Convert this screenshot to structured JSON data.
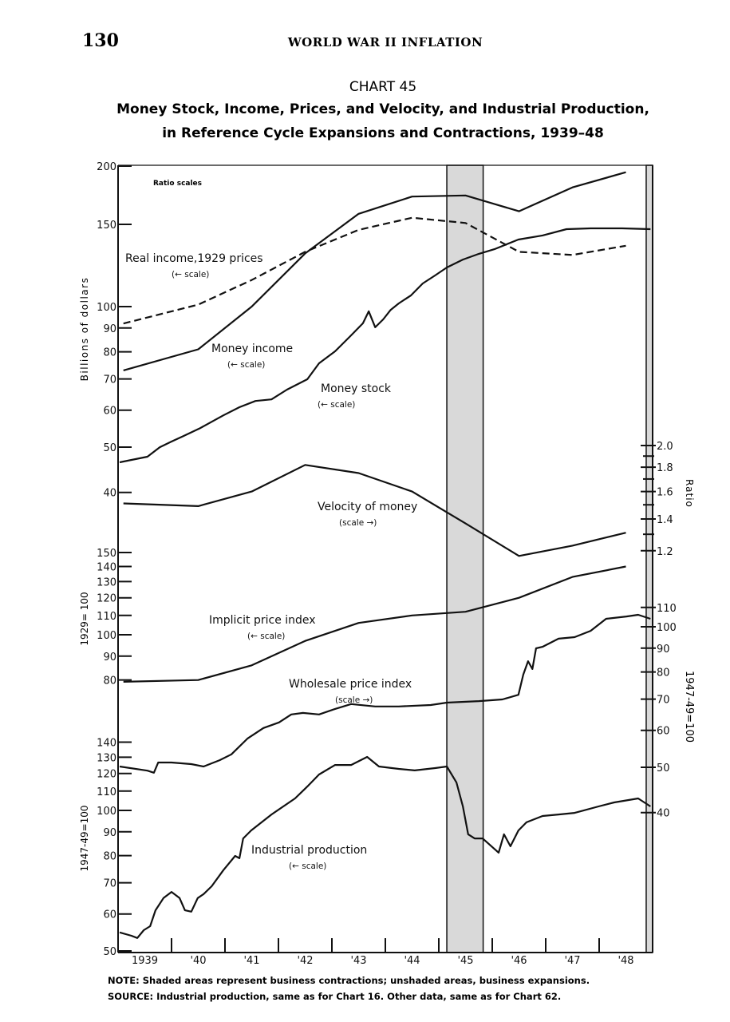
{
  "page": {
    "number": "130",
    "running_head": "WORLD WAR II INFLATION"
  },
  "colors": {
    "ink": "#111111",
    "shade": "#d9d9d9",
    "paper": "#ffffff"
  },
  "chart_data": {
    "type": "line",
    "chart_label": "CHART 45",
    "title_line1": "Money Stock, Income, Prices, and Velocity, and Industrial Production,",
    "title_line2": "in Reference Cycle Expansions and Contractions, 1939–48",
    "scale_note": "Ratio scales",
    "x_tick_labels": [
      "1939",
      "'40",
      "'41",
      "'42",
      "'43",
      "'44",
      "'45",
      "'46",
      "'47",
      "'48"
    ],
    "xlim": [
      1939,
      1949
    ],
    "contractions": [
      [
        1945.15,
        1945.83
      ],
      [
        1948.88,
        1949.0
      ]
    ],
    "axes": {
      "dollars": {
        "title": "Billions of dollars",
        "ticks": [
          200,
          150,
          100,
          90,
          80,
          70,
          60,
          50,
          40
        ],
        "side": "left"
      },
      "ratio": {
        "title": "Ratio",
        "ticks": [
          2.0,
          1.8,
          1.6,
          1.4,
          1.2
        ],
        "minor": [
          1.9,
          1.7,
          1.5,
          1.3
        ],
        "side": "right"
      },
      "index1929": {
        "title": "1929= 100",
        "ticks": [
          150,
          140,
          130,
          120,
          110,
          100,
          90,
          80
        ],
        "side": "left"
      },
      "wholesale": {
        "title": "1947-49=100",
        "ticks": [
          110,
          100,
          90,
          80,
          70,
          60,
          50,
          40
        ],
        "side": "right"
      },
      "production": {
        "title": "1947-49=100",
        "ticks": [
          140,
          130,
          120,
          110,
          100,
          90,
          80,
          70,
          60,
          50
        ],
        "side": "left"
      }
    },
    "series": [
      {
        "name": "Money income",
        "scale_note": "(← scale)",
        "axis": "dollars",
        "style": "solid",
        "x": [
          1939.1,
          1940.5,
          1941.5,
          1942.5,
          1943.5,
          1944.5,
          1945.5,
          1946.5,
          1947.5,
          1948.5
        ],
        "values": [
          73,
          81,
          100,
          130,
          158,
          172,
          173,
          160,
          180,
          194
        ]
      },
      {
        "name": "Real income,1929 prices",
        "scale_note": "(← scale)",
        "axis": "dollars",
        "style": "dashed",
        "x": [
          1939.1,
          1940.5,
          1941.5,
          1942.5,
          1943.5,
          1944.5,
          1945.5,
          1946.5,
          1947.5,
          1948.5
        ],
        "values": [
          92,
          101,
          114,
          131,
          146,
          155,
          151,
          131,
          129,
          135
        ]
      },
      {
        "name": "Money stock",
        "scale_note": "(← scale)",
        "axis": "dollars",
        "style": "solid",
        "x": [
          1939.03,
          1939.55,
          1939.78,
          1940.0,
          1940.22,
          1940.52,
          1940.97,
          1941.27,
          1941.57,
          1941.87,
          1942.16,
          1942.54,
          1942.76,
          1943.06,
          1943.36,
          1943.58,
          1943.69,
          1943.81,
          1943.96,
          1944.1,
          1944.25,
          1944.48,
          1944.7,
          1944.93,
          1945.15,
          1945.45,
          1945.75,
          1946.04,
          1946.49,
          1946.94,
          1947.39,
          1947.84,
          1948.43,
          1948.96
        ],
        "values": [
          46.4,
          47.7,
          50,
          51.4,
          52.8,
          54.8,
          58.5,
          60.9,
          62.8,
          63.3,
          66.4,
          69.9,
          75.6,
          80.2,
          86.8,
          92.1,
          97.7,
          90.3,
          93.9,
          98.4,
          101.6,
          105.7,
          112.1,
          116.6,
          121.3,
          126.1,
          129.7,
          132.7,
          139.2,
          142,
          146.5,
          147.1,
          147.1,
          146.5
        ]
      },
      {
        "name": "Velocity of money",
        "scale_note": "(scale →)",
        "axis": "ratio",
        "style": "solid",
        "x": [
          1939.1,
          1940.5,
          1941.5,
          1942.5,
          1943.5,
          1944.5,
          1945.5,
          1946.5,
          1947.5,
          1948.5
        ],
        "values": [
          1.51,
          1.49,
          1.6,
          1.82,
          1.75,
          1.6,
          1.37,
          1.17,
          1.23,
          1.31
        ]
      },
      {
        "name": "Implicit price index",
        "scale_note": "(← scale)",
        "axis": "index1929",
        "style": "solid",
        "x": [
          1939.1,
          1940.5,
          1941.5,
          1942.5,
          1943.5,
          1944.5,
          1945.5,
          1946.5,
          1947.5,
          1948.5
        ],
        "values": [
          79.3,
          80,
          86,
          97,
          106,
          110,
          112,
          120,
          133,
          140
        ]
      },
      {
        "name": "Wholesale price index",
        "scale_note": "(scale →)",
        "axis": "wholesale",
        "style": "solid",
        "x": [
          1939.03,
          1939.55,
          1939.67,
          1939.75,
          1940.0,
          1940.37,
          1940.6,
          1940.9,
          1941.12,
          1941.42,
          1941.72,
          1942.01,
          1942.24,
          1942.46,
          1942.76,
          1943.06,
          1943.36,
          1943.81,
          1944.25,
          1944.85,
          1945.15,
          1945.75,
          1946.19,
          1946.49,
          1946.58,
          1946.67,
          1946.75,
          1946.82,
          1946.94,
          1947.24,
          1947.54,
          1947.84,
          1948.13,
          1948.51,
          1948.73,
          1948.96
        ],
        "values": [
          50.2,
          49.2,
          48.7,
          51.2,
          51.2,
          50.8,
          50.2,
          51.8,
          53.3,
          57.6,
          60.7,
          62.4,
          64.9,
          65.4,
          64.9,
          66.7,
          68.3,
          67.5,
          67.5,
          68,
          68.8,
          69.3,
          69.9,
          71.5,
          79,
          84.4,
          81.2,
          89.9,
          90.6,
          94.3,
          95,
          98,
          104,
          105.2,
          106.1,
          104
        ]
      },
      {
        "name": "Industrial production",
        "scale_note": "(← scale)",
        "axis": "production",
        "style": "solid",
        "x": [
          1939.03,
          1939.25,
          1939.36,
          1939.48,
          1939.6,
          1939.7,
          1939.85,
          1940.0,
          1940.15,
          1940.25,
          1940.37,
          1940.49,
          1940.6,
          1940.75,
          1940.97,
          1941.19,
          1941.27,
          1941.34,
          1941.49,
          1941.87,
          1942.31,
          1942.54,
          1942.76,
          1943.06,
          1943.36,
          1943.66,
          1943.88,
          1944.25,
          1944.55,
          1944.93,
          1945.15,
          1945.33,
          1945.45,
          1945.55,
          1945.67,
          1945.82,
          1946.12,
          1946.22,
          1946.34,
          1946.49,
          1946.64,
          1946.94,
          1947.24,
          1947.54,
          1947.99,
          1948.28,
          1948.73,
          1948.96
        ],
        "values": [
          54.8,
          53.9,
          53.3,
          55.4,
          56.5,
          61.1,
          64.9,
          66.9,
          64.9,
          61.1,
          60.7,
          64.9,
          66.2,
          68.8,
          74.5,
          79.9,
          79,
          87.1,
          90.6,
          98,
          106.1,
          112.5,
          119.4,
          125.1,
          125.1,
          130.2,
          124.2,
          122.7,
          121.8,
          123.2,
          124.2,
          114.8,
          102,
          88.9,
          87.1,
          87.1,
          81.2,
          88.9,
          83.8,
          90.6,
          94.3,
          97.3,
          98,
          98.8,
          102,
          104,
          106.1,
          102
        ]
      }
    ]
  },
  "notes": {
    "note_label": "NOTE:",
    "note_text": "Shaded areas represent business contractions; unshaded areas, business expansions.",
    "source_label": "SOURCE:",
    "source_text": "Industrial production, same as for Chart 16. Other data, same as for Chart 62."
  }
}
